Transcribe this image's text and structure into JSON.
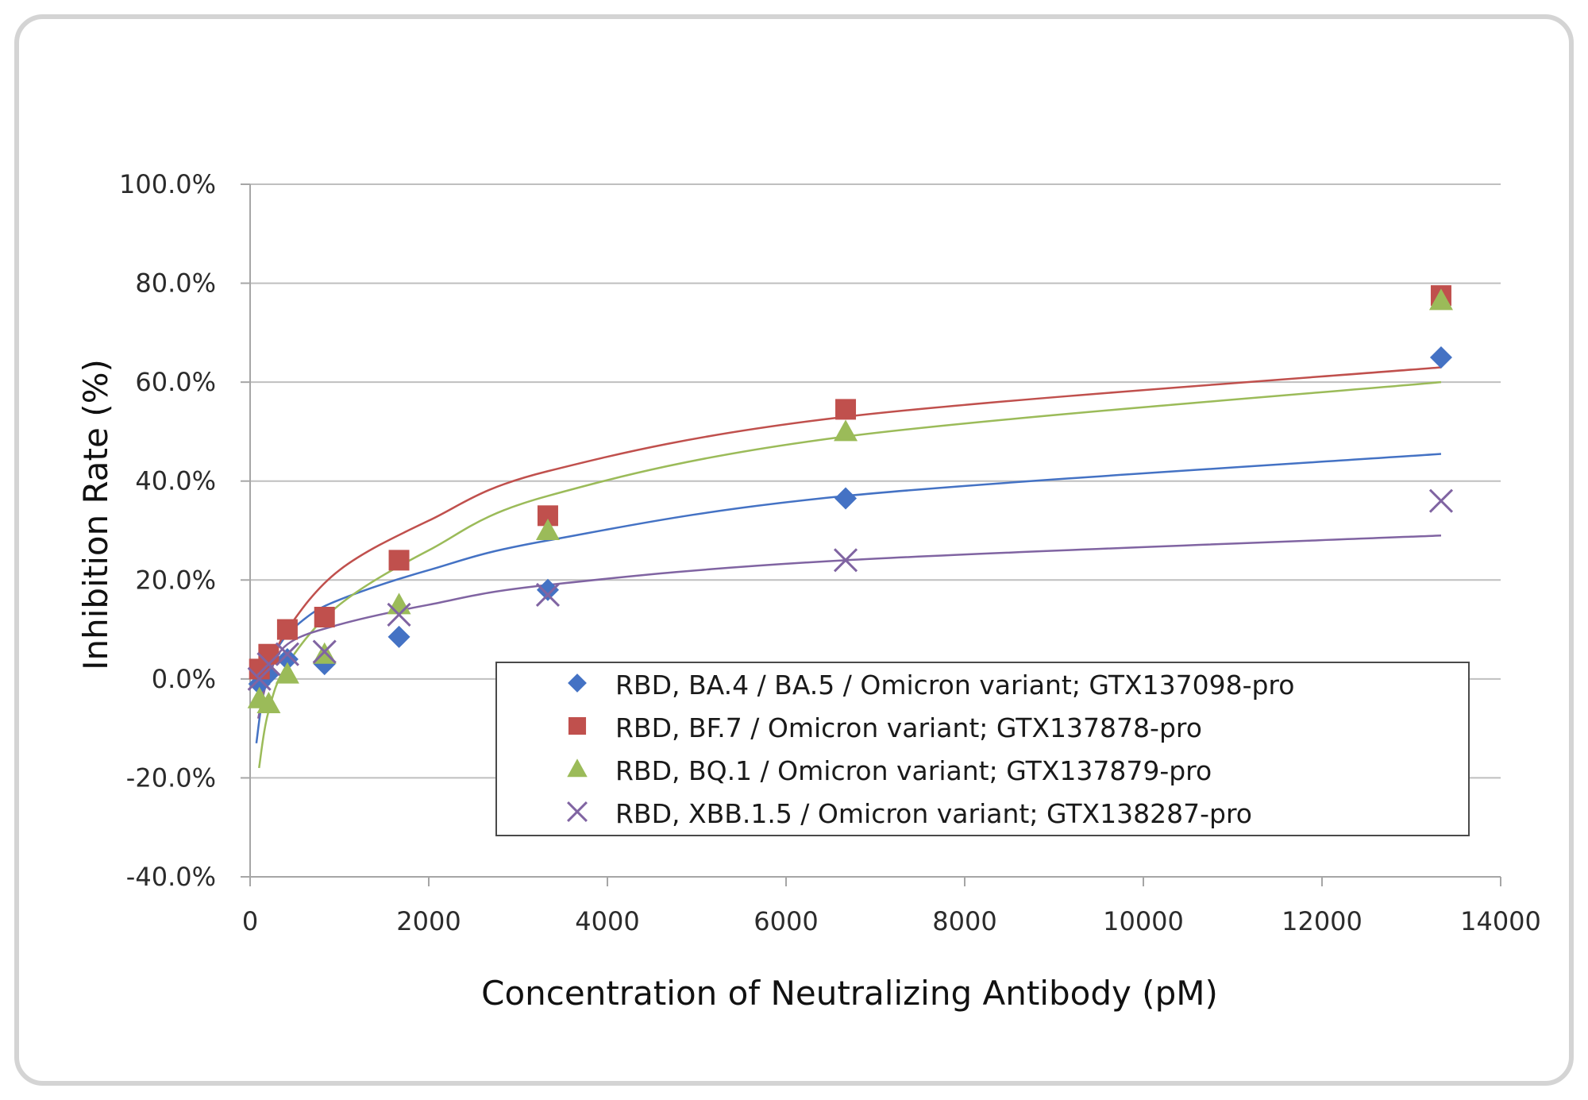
{
  "chart_data": {
    "type": "scatter",
    "title": "",
    "xlabel": "Concentration of Neutralizing Antibody (pM)",
    "ylabel": "Inhibition Rate (%)",
    "xlim": [
      0,
      14000
    ],
    "ylim": [
      -40,
      100
    ],
    "x_ticks": [
      0,
      2000,
      4000,
      6000,
      8000,
      10000,
      12000,
      14000
    ],
    "x_tick_labels": [
      "0",
      "2000",
      "4000",
      "6000",
      "8000",
      "10000",
      "12000",
      "14000"
    ],
    "y_ticks": [
      100,
      80,
      60,
      40,
      20,
      0,
      -20,
      -40
    ],
    "y_tick_labels": [
      "100.0%",
      "80.0%",
      "60.0%",
      "40.0%",
      "20.0%",
      "0.0%",
      "-20.0%",
      "-40.0%"
    ],
    "grid": "horizontal",
    "legend_position": "lower-right",
    "trendline": "logarithmic",
    "series": [
      {
        "name": "RBD, BA.4 / BA.5 / Omicron variant; GTX137098-pro",
        "marker": "diamond",
        "color": "#4472c4",
        "points": [
          [
            104,
            -1
          ],
          [
            208,
            1
          ],
          [
            417,
            4
          ],
          [
            833,
            3
          ],
          [
            1667,
            8.5
          ],
          [
            3333,
            18
          ],
          [
            6667,
            36.5
          ],
          [
            13333,
            65
          ]
        ],
        "fit_points": [
          [
            70,
            -13
          ],
          [
            150,
            -3
          ],
          [
            300,
            6
          ],
          [
            600,
            12
          ],
          [
            1000,
            16
          ],
          [
            2000,
            22
          ],
          [
            3333,
            28
          ],
          [
            6667,
            37
          ],
          [
            13333,
            45.5
          ]
        ]
      },
      {
        "name": "RBD, BF.7 / Omicron variant; GTX137878-pro",
        "marker": "square",
        "color": "#c0504d",
        "points": [
          [
            104,
            2
          ],
          [
            208,
            5
          ],
          [
            417,
            10
          ],
          [
            833,
            12.5
          ],
          [
            1667,
            24
          ],
          [
            3333,
            33
          ],
          [
            6667,
            54.5
          ],
          [
            13333,
            77.5
          ]
        ],
        "fit_points": [
          [
            120,
            -5
          ],
          [
            200,
            1
          ],
          [
            417,
            10
          ],
          [
            1000,
            22
          ],
          [
            2000,
            32
          ],
          [
            3333,
            42
          ],
          [
            6667,
            53
          ],
          [
            13333,
            63
          ]
        ]
      },
      {
        "name": "RBD, BQ.1 / Omicron variant; GTX137879-pro",
        "marker": "triangle",
        "color": "#9bbb59",
        "points": [
          [
            104,
            -4
          ],
          [
            208,
            -5
          ],
          [
            417,
            1
          ],
          [
            833,
            5
          ],
          [
            1667,
            15
          ],
          [
            3333,
            30
          ],
          [
            6667,
            50
          ],
          [
            13333,
            76.5
          ]
        ],
        "fit_points": [
          [
            100,
            -18
          ],
          [
            200,
            -7
          ],
          [
            417,
            3
          ],
          [
            1000,
            15
          ],
          [
            2000,
            26
          ],
          [
            3333,
            37
          ],
          [
            6667,
            49
          ],
          [
            13333,
            60
          ]
        ]
      },
      {
        "name": "RBD, XBB.1.5 / Omicron variant; GTX138287-pro",
        "marker": "x",
        "color": "#8064a2",
        "points": [
          [
            104,
            0
          ],
          [
            208,
            3
          ],
          [
            417,
            5
          ],
          [
            833,
            5.5
          ],
          [
            1667,
            13
          ],
          [
            3333,
            17
          ],
          [
            6667,
            24
          ],
          [
            13333,
            36
          ]
        ],
        "fit_points": [
          [
            90,
            -8
          ],
          [
            200,
            0
          ],
          [
            417,
            7
          ],
          [
            1000,
            11
          ],
          [
            2000,
            15
          ],
          [
            3333,
            19
          ],
          [
            6667,
            24
          ],
          [
            13333,
            29
          ]
        ]
      }
    ]
  }
}
